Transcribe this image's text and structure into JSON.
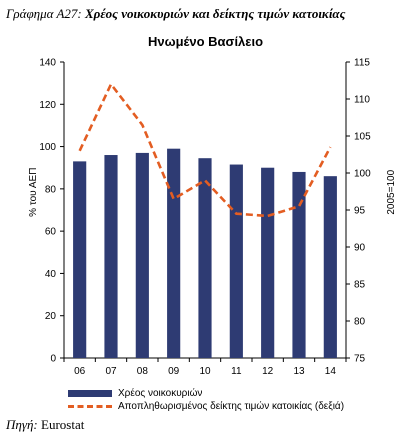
{
  "header": {
    "figure_label": "Γράφημα Α27:",
    "figure_title": "Χρέος νοικοκυριών και δείκτης τιμών κατοικίας"
  },
  "footer": {
    "source_label": "Πηγή:",
    "source_value": "Eurostat"
  },
  "chart_data": {
    "type": "bar",
    "title": "Ηνωμένο Βασίλειο",
    "categories": [
      "06",
      "07",
      "08",
      "09",
      "10",
      "11",
      "12",
      "13",
      "14"
    ],
    "ylabel": "% του ΑΕΠ",
    "y2label": "2005=100",
    "ylim": [
      0,
      140
    ],
    "yticks": [
      0,
      20,
      40,
      60,
      80,
      100,
      120,
      140
    ],
    "y2lim": [
      75,
      115
    ],
    "y2ticks": [
      75,
      80,
      85,
      90,
      95,
      100,
      105,
      110,
      115
    ],
    "legend_position": "bottom",
    "grid": false,
    "series": [
      {
        "name": "Χρέος νοικοκυριών",
        "type": "bar",
        "axis": "left",
        "color": "#2e3b73",
        "values": [
          93,
          96,
          97,
          99,
          94.5,
          91.5,
          90,
          88,
          86
        ]
      },
      {
        "name": "Αποπληθωρισμένος δείκτης τιμών κατοικίας (δεξιά)",
        "type": "line",
        "axis": "right",
        "style": "dashed",
        "color": "#e35d22",
        "values": [
          103,
          112,
          106.5,
          96.5,
          99,
          94.5,
          94.2,
          95.5,
          103.5
        ]
      }
    ]
  }
}
